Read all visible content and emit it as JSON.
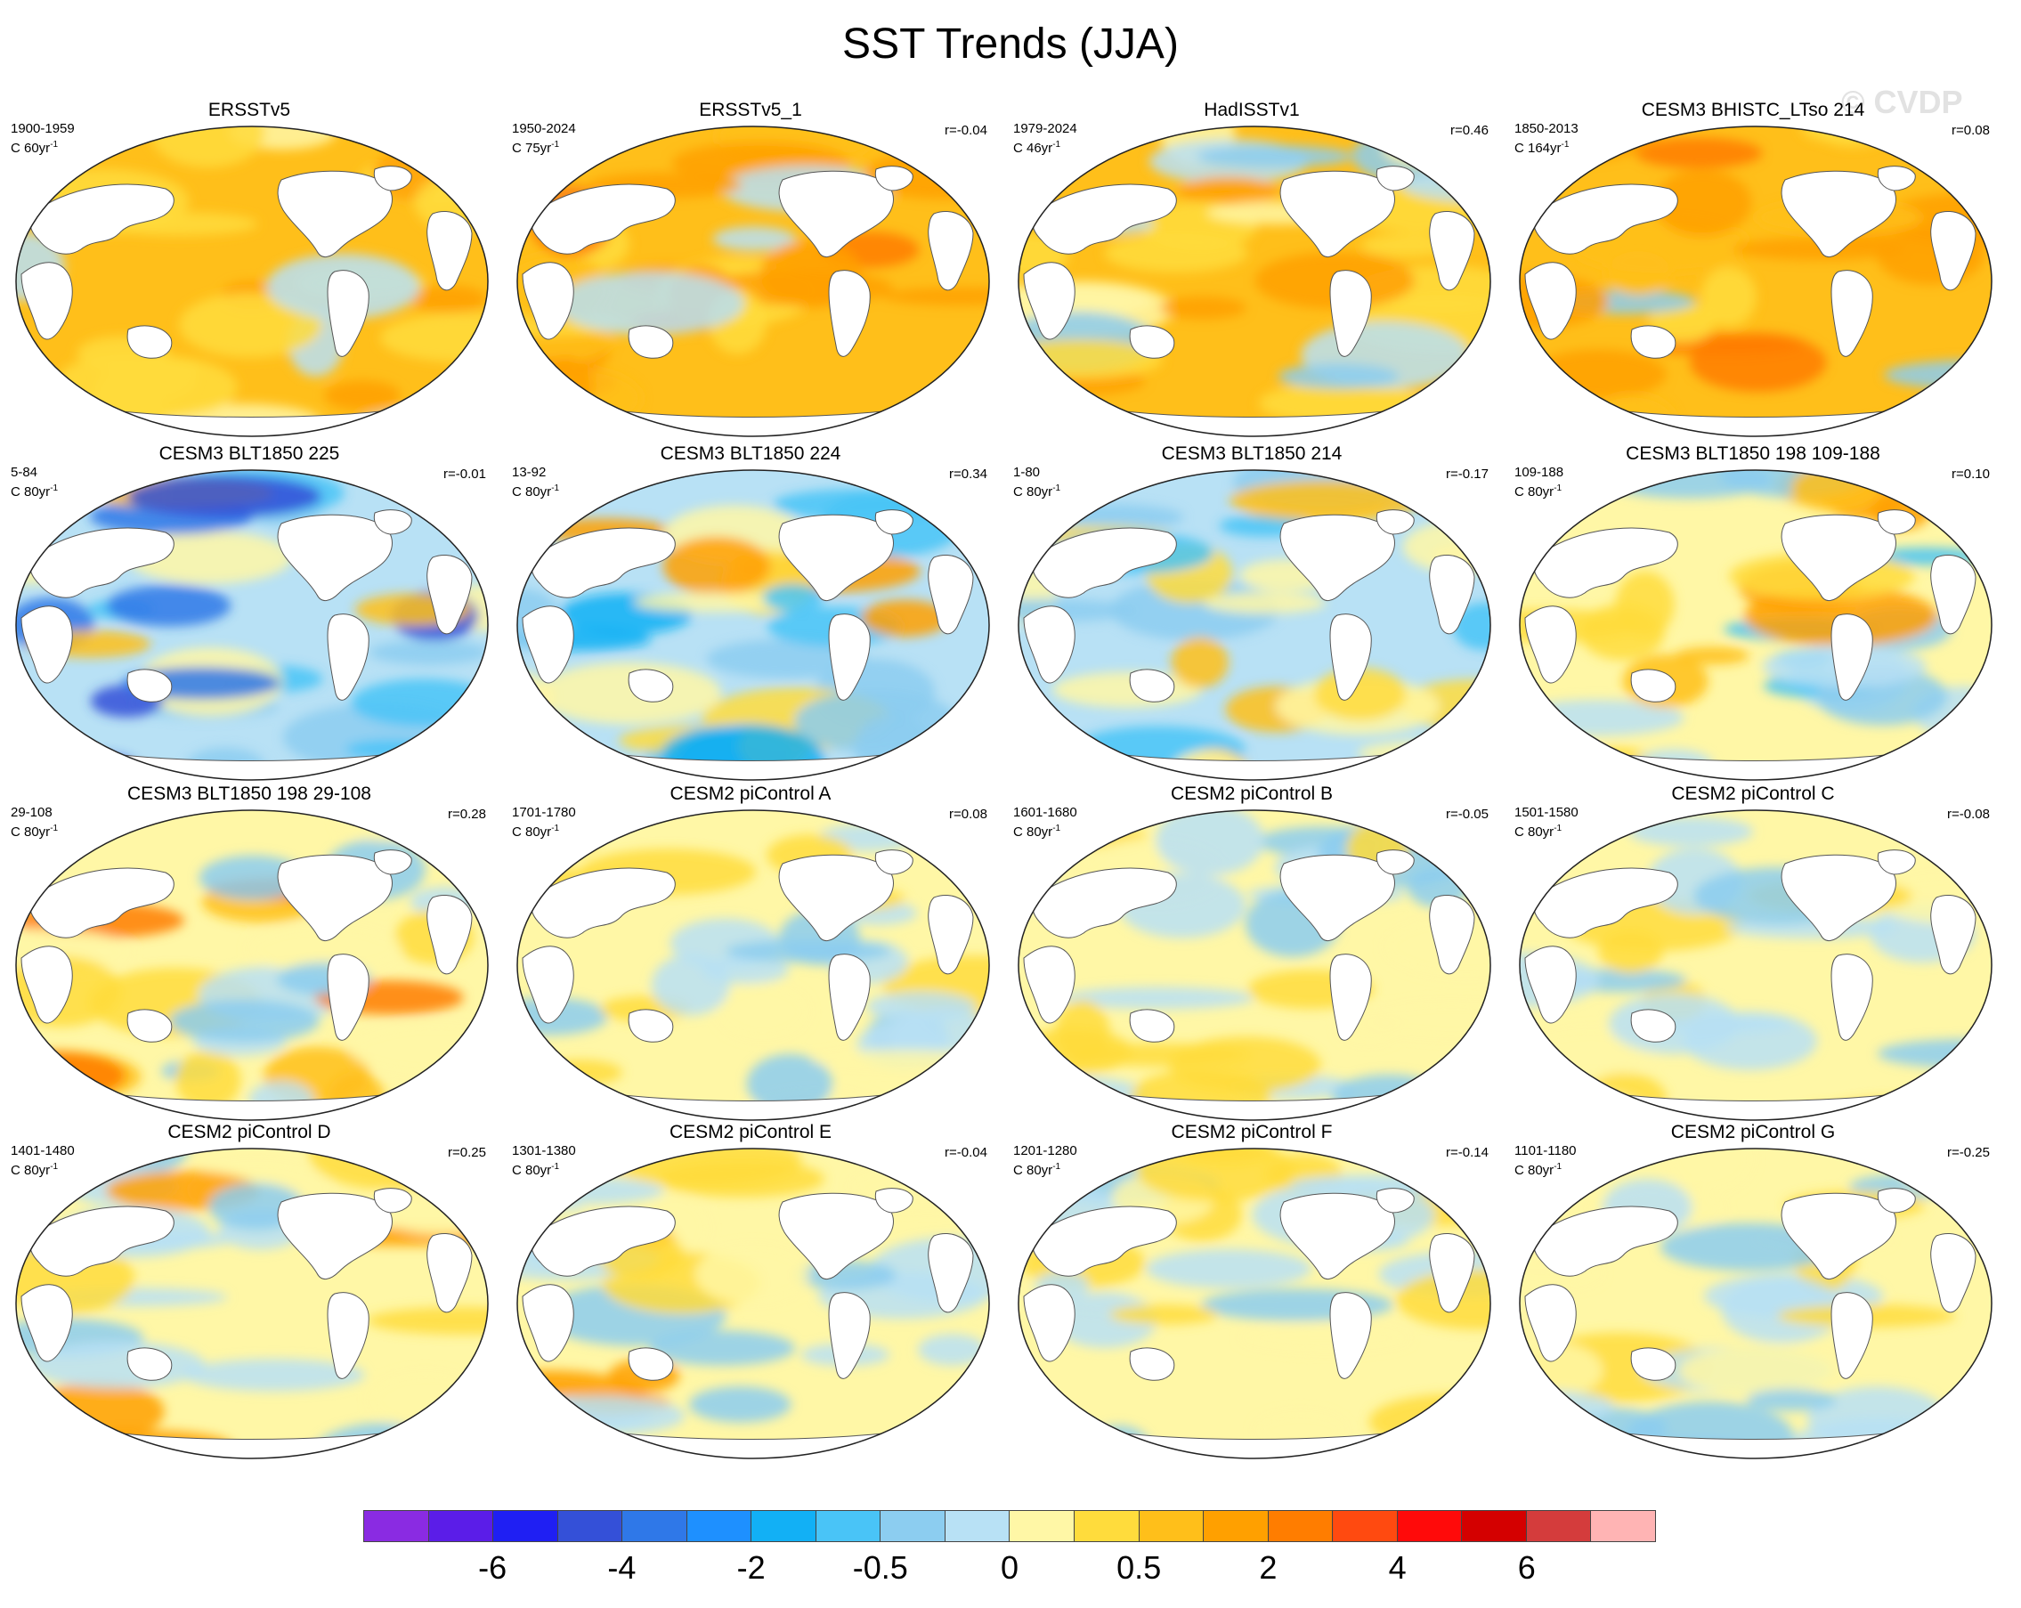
{
  "title": "SST Trends (JJA)",
  "watermark": "© CVDP",
  "colorbar": {
    "colors": [
      "#8a2be2",
      "#5b1de8",
      "#1f1ff3",
      "#3450d8",
      "#2f78e8",
      "#1e90ff",
      "#12b0f5",
      "#49c4f7",
      "#8ccdf0",
      "#b8e1f5",
      "#fff7a6",
      "#ffdc3c",
      "#ffbf1a",
      "#ffa000",
      "#ff7d00",
      "#ff4a10",
      "#ff0a0a",
      "#d40000",
      "#d43c3c",
      "#ffb4b4"
    ],
    "tick_labels": [
      "-6",
      "-4",
      "-2",
      "-0.5",
      "0",
      "0.5",
      "2",
      "4",
      "6"
    ]
  },
  "panels": [
    {
      "title": "ERSSTv5",
      "period": "1900-1959",
      "rate": "C 60yr",
      "r": ""
    },
    {
      "title": "ERSSTv5_1",
      "period": "1950-2024",
      "rate": "C 75yr",
      "r": "r=-0.04"
    },
    {
      "title": "HadISSTv1",
      "period": "1979-2024",
      "rate": "C 46yr",
      "r": "r=0.46"
    },
    {
      "title": "CESM3 BHISTC_LTso 214",
      "period": "1850-2013",
      "rate": "C 164yr",
      "r": "r=0.08"
    },
    {
      "title": "CESM3 BLT1850 225",
      "period": "5-84",
      "rate": "C 80yr",
      "r": "r=-0.01"
    },
    {
      "title": "CESM3 BLT1850 224",
      "period": "13-92",
      "rate": "C 80yr",
      "r": "r=0.34"
    },
    {
      "title": "CESM3 BLT1850 214",
      "period": "1-80",
      "rate": "C 80yr",
      "r": "r=-0.17"
    },
    {
      "title": "CESM3 BLT1850 198 109-188",
      "period": "109-188",
      "rate": "C 80yr",
      "r": "r=0.10"
    },
    {
      "title": "CESM3 BLT1850 198 29-108",
      "period": "29-108",
      "rate": "C 80yr",
      "r": "r=0.28"
    },
    {
      "title": "CESM2 piControl A",
      "period": "1701-1780",
      "rate": "C 80yr",
      "r": "r=0.08"
    },
    {
      "title": "CESM2 piControl B",
      "period": "1601-1680",
      "rate": "C 80yr",
      "r": "r=-0.05"
    },
    {
      "title": "CESM2 piControl C",
      "period": "1501-1580",
      "rate": "C 80yr",
      "r": "r=-0.08"
    },
    {
      "title": "CESM2 piControl D",
      "period": "1401-1480",
      "rate": "C 80yr",
      "r": "r=0.25"
    },
    {
      "title": "CESM2 piControl E",
      "period": "1301-1380",
      "rate": "C 80yr",
      "r": "r=-0.04"
    },
    {
      "title": "CESM2 piControl F",
      "period": "1201-1280",
      "rate": "C 80yr",
      "r": "r=-0.14"
    },
    {
      "title": "CESM2 piControl G",
      "period": "1101-1180",
      "rate": "C 80yr",
      "r": "r=-0.25"
    }
  ]
}
